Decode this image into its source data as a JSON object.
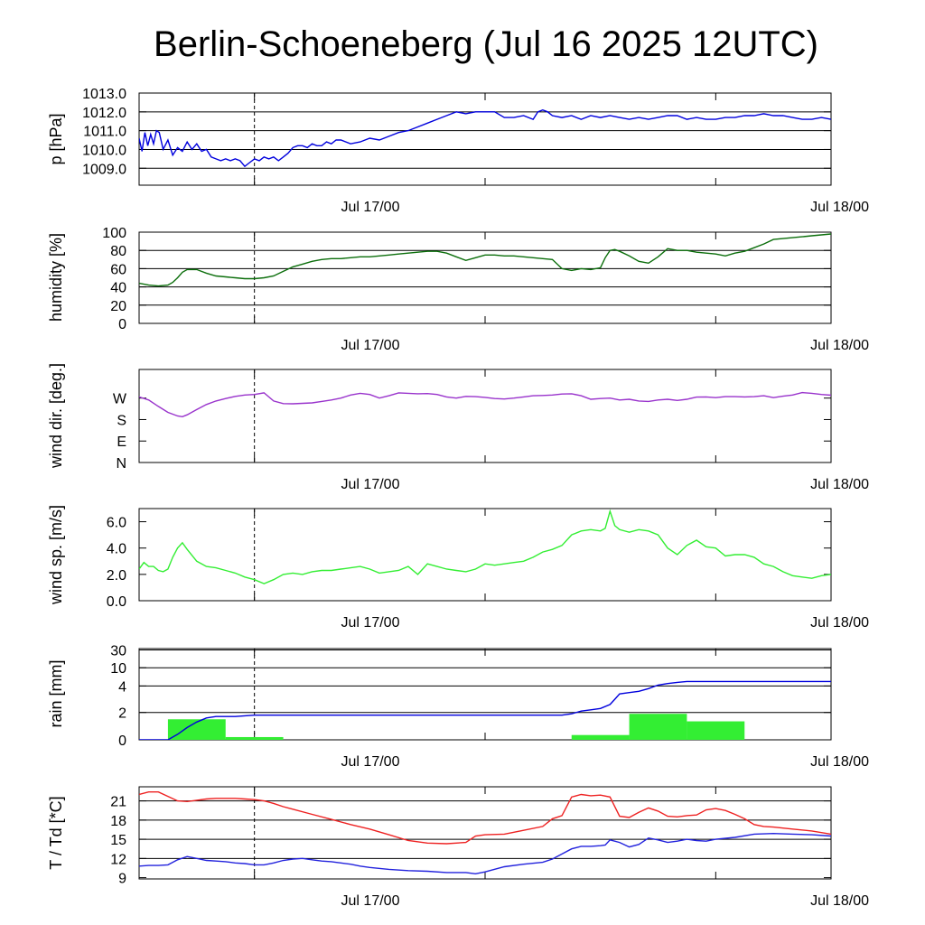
{
  "title": "Berlin-Schoeneberg (Jul 16 2025 12UTC)",
  "x_ticks": [
    "Jul 17/00",
    "Jul 18/00"
  ],
  "chart_data": [
    {
      "id": "pressure",
      "type": "line",
      "ylabel": "p [hPa]",
      "ylim": [
        1008.1,
        1013.0
      ],
      "ticks": [
        1009.0,
        1010.0,
        1011.0,
        1012.0,
        1013.0
      ],
      "tick_labels": [
        "1009.0",
        "1010.0",
        "1011.0",
        "1012.0",
        "1013.0"
      ],
      "grid_lines": [
        1009.0,
        1010.0,
        1011.0,
        1012.0,
        1013.0
      ],
      "color": "#0000dd",
      "x_hours": [
        0,
        0.3,
        0.6,
        0.9,
        1.2,
        1.5,
        1.8,
        2.1,
        2.5,
        3,
        3.5,
        4,
        4.5,
        5,
        5.5,
        6,
        6.5,
        7,
        7.5,
        8,
        8.5,
        9,
        9.5,
        10,
        10.5,
        11,
        11.5,
        12,
        12.5,
        13,
        13.5,
        14,
        14.5,
        15,
        15.5,
        16,
        16.5,
        17,
        17.5,
        18,
        18.5,
        19,
        19.5,
        20,
        20.5,
        21,
        22,
        23,
        24,
        25,
        26,
        27,
        28,
        29,
        30,
        31,
        32,
        33,
        34,
        35,
        36,
        37,
        38,
        39,
        40,
        41,
        41.5,
        42,
        42.5,
        43,
        44,
        45,
        46,
        47,
        48,
        49,
        50,
        51,
        52,
        53,
        54,
        55,
        56,
        57,
        58,
        59,
        60,
        61,
        62,
        63,
        64,
        65,
        66,
        67,
        68,
        69,
        70,
        71,
        72
      ],
      "values": [
        1010.6,
        1009.9,
        1010.9,
        1010.2,
        1010.8,
        1010.3,
        1011.0,
        1010.9,
        1010.0,
        1010.5,
        1009.7,
        1010.1,
        1009.9,
        1010.4,
        1010.0,
        1010.3,
        1009.9,
        1010.0,
        1009.6,
        1009.5,
        1009.4,
        1009.5,
        1009.4,
        1009.5,
        1009.4,
        1009.1,
        1009.3,
        1009.5,
        1009.4,
        1009.6,
        1009.5,
        1009.6,
        1009.4,
        1009.6,
        1009.8,
        1010.1,
        1010.2,
        1010.2,
        1010.1,
        1010.3,
        1010.2,
        1010.2,
        1010.4,
        1010.3,
        1010.5,
        1010.5,
        1010.3,
        1010.4,
        1010.6,
        1010.5,
        1010.7,
        1010.9,
        1011.0,
        1011.2,
        1011.4,
        1011.6,
        1011.8,
        1012.0,
        1011.9,
        1012.0,
        1012.0,
        1012.0,
        1011.7,
        1011.7,
        1011.8,
        1011.6,
        1012.0,
        1012.1,
        1012.0,
        1011.8,
        1011.7,
        1011.8,
        1011.6,
        1011.8,
        1011.7,
        1011.8,
        1011.7,
        1011.6,
        1011.7,
        1011.6,
        1011.7,
        1011.8,
        1011.8,
        1011.6,
        1011.7,
        1011.6,
        1011.6,
        1011.7,
        1011.7,
        1011.8,
        1011.8,
        1011.9,
        1011.8,
        1011.8,
        1011.7,
        1011.6,
        1011.6,
        1011.7,
        1011.6
      ]
    },
    {
      "id": "humidity",
      "type": "line",
      "ylabel": "humidity [%]",
      "ylim": [
        0,
        100
      ],
      "ticks": [
        0,
        20,
        40,
        60,
        80,
        100
      ],
      "tick_labels": [
        "0",
        "20",
        "40",
        "60",
        "80",
        "100"
      ],
      "grid_lines": [
        20,
        40,
        60,
        80,
        100
      ],
      "color": "#0b6e0b",
      "x_hours": [
        0,
        1,
        2,
        3,
        3.5,
        4,
        4.5,
        5,
        6,
        7,
        8,
        9,
        10,
        11,
        12,
        13,
        14,
        15,
        16,
        17,
        18,
        19,
        20,
        21,
        22,
        23,
        24,
        25,
        26,
        27,
        28,
        29,
        30,
        31,
        32,
        33,
        34,
        35,
        36,
        37,
        38,
        39,
        40,
        41,
        42,
        43,
        44,
        45,
        46,
        47,
        48,
        48.5,
        49,
        49.5,
        50,
        51,
        52,
        53,
        54,
        55,
        56,
        57,
        58,
        59,
        60,
        61,
        62,
        63,
        64,
        65,
        66,
        67,
        68,
        69,
        70,
        71,
        72
      ],
      "values": [
        44,
        42,
        41,
        42,
        45,
        50,
        56,
        59,
        59,
        55,
        52,
        51,
        50,
        49,
        49,
        50,
        52,
        57,
        62,
        65,
        68,
        70,
        71,
        71,
        72,
        73,
        73,
        74,
        75,
        76,
        77,
        78,
        79,
        79,
        77,
        73,
        69,
        72,
        75,
        75,
        74,
        74,
        73,
        72,
        71,
        70,
        60,
        58,
        60,
        59,
        61,
        72,
        80,
        81,
        79,
        74,
        68,
        66,
        73,
        82,
        80,
        80,
        78,
        77,
        76,
        74,
        77,
        79,
        83,
        87,
        92,
        93,
        94,
        95,
        96,
        97,
        98
      ]
    },
    {
      "id": "wind_dir",
      "type": "line",
      "ylabel": "wind dir. [deg.]",
      "ylim": [
        0,
        390
      ],
      "ticks": [
        0,
        90,
        180,
        270
      ],
      "tick_labels": [
        "N",
        "E",
        "S",
        "W"
      ],
      "grid_lines": [],
      "color": "#9933cc",
      "x_hours": [
        0,
        1,
        2,
        3,
        4,
        4.5,
        5,
        6,
        7,
        8,
        9,
        10,
        11,
        12,
        13,
        14,
        15,
        16,
        17,
        18,
        19,
        20,
        21,
        22,
        23,
        24,
        25,
        26,
        27,
        28,
        29,
        30,
        31,
        32,
        33,
        34,
        35,
        36,
        37,
        38,
        39,
        40,
        41,
        42,
        43,
        44,
        45,
        46,
        47,
        48,
        49,
        50,
        51,
        52,
        53,
        54,
        55,
        56,
        57,
        58,
        59,
        60,
        61,
        62,
        63,
        64,
        65,
        66,
        67,
        68,
        69,
        70,
        71,
        72
      ],
      "values": [
        275,
        262,
        235,
        210,
        195,
        192,
        200,
        222,
        243,
        258,
        268,
        277,
        283,
        285,
        292,
        258,
        247,
        246,
        248,
        250,
        256,
        262,
        270,
        283,
        290,
        285,
        270,
        280,
        292,
        290,
        288,
        289,
        285,
        275,
        270,
        277,
        276,
        273,
        268,
        266,
        270,
        275,
        280,
        281,
        283,
        287,
        288,
        280,
        265,
        268,
        270,
        262,
        265,
        258,
        256,
        262,
        265,
        260,
        265,
        274,
        275,
        272,
        276,
        276,
        275,
        276,
        280,
        272,
        278,
        283,
        293,
        290,
        285,
        282
      ]
    },
    {
      "id": "wind_speed",
      "type": "line",
      "ylabel": "wind sp. [m/s]",
      "ylim": [
        0,
        7
      ],
      "ticks": [
        0.0,
        2.0,
        4.0,
        6.0
      ],
      "tick_labels": [
        "0.0",
        "2.0",
        "4.0",
        "6.0"
      ],
      "grid_lines": [],
      "color": "#33ee33",
      "x_hours": [
        0,
        0.5,
        1,
        1.5,
        2,
        2.5,
        3,
        3.5,
        4,
        4.5,
        5,
        6,
        7,
        8,
        9,
        10,
        11,
        12,
        13,
        14,
        15,
        16,
        17,
        18,
        19,
        20,
        21,
        22,
        23,
        24,
        25,
        26,
        27,
        28,
        29,
        30,
        31,
        32,
        33,
        34,
        35,
        36,
        37,
        38,
        39,
        40,
        41,
        42,
        43,
        44,
        45,
        46,
        47,
        48,
        48.5,
        49,
        49.5,
        50,
        51,
        52,
        53,
        54,
        55,
        56,
        57,
        58,
        59,
        60,
        61,
        62,
        63,
        64,
        65,
        66,
        67,
        68,
        69,
        70,
        71,
        72
      ],
      "values": [
        2.4,
        2.9,
        2.6,
        2.6,
        2.3,
        2.2,
        2.4,
        3.3,
        4.0,
        4.4,
        3.9,
        3.0,
        2.6,
        2.5,
        2.3,
        2.1,
        1.8,
        1.6,
        1.3,
        1.6,
        2.0,
        2.1,
        2.0,
        2.2,
        2.3,
        2.3,
        2.4,
        2.5,
        2.6,
        2.4,
        2.1,
        2.2,
        2.3,
        2.6,
        2.0,
        2.8,
        2.6,
        2.4,
        2.3,
        2.2,
        2.4,
        2.8,
        2.7,
        2.8,
        2.9,
        3.0,
        3.3,
        3.7,
        3.9,
        4.2,
        5.0,
        5.3,
        5.4,
        5.3,
        5.5,
        6.8,
        5.7,
        5.4,
        5.2,
        5.4,
        5.3,
        5.0,
        4.0,
        3.5,
        4.2,
        4.6,
        4.1,
        4.0,
        3.4,
        3.5,
        3.5,
        3.3,
        2.8,
        2.6,
        2.2,
        1.9,
        1.8,
        1.7,
        1.9,
        2.0
      ]
    },
    {
      "id": "rain",
      "type": "bar+line",
      "ylabel": "rain [mm]",
      "ylim_display": [
        0,
        30
      ],
      "ticks": [
        0,
        2,
        4,
        10,
        30
      ],
      "tick_labels": [
        "0",
        "2",
        "4",
        "10",
        "30"
      ],
      "grid_lines": [
        2,
        4,
        10,
        30
      ],
      "bar_color": "#33ee33",
      "line_color": "#0000dd",
      "bars": [
        {
          "start_hour": 3,
          "end_hour": 9,
          "value": 1.5
        },
        {
          "start_hour": 9,
          "end_hour": 15,
          "value": 0.2
        },
        {
          "start_hour": 45,
          "end_hour": 51,
          "value": 0.35
        },
        {
          "start_hour": 51,
          "end_hour": 57,
          "value": 1.9
        },
        {
          "start_hour": 57,
          "end_hour": 63,
          "value": 1.35
        }
      ],
      "cumulative_x_hours": [
        0,
        3,
        4,
        5,
        6,
        7,
        8,
        10,
        12,
        14,
        20,
        24,
        30,
        36,
        42,
        44,
        45,
        46,
        47,
        48,
        49,
        49.5,
        50,
        51,
        52,
        53,
        54,
        55,
        56,
        57,
        58,
        60,
        64,
        72
      ],
      "cumulative_values": [
        0,
        0,
        0.4,
        0.9,
        1.3,
        1.6,
        1.7,
        1.7,
        1.8,
        1.8,
        1.8,
        1.8,
        1.8,
        1.8,
        1.8,
        1.8,
        1.9,
        2.1,
        2.2,
        2.3,
        2.6,
        3.0,
        3.4,
        3.5,
        3.6,
        3.8,
        4.3,
        4.8,
        5.2,
        5.5,
        5.5,
        5.5,
        5.5,
        5.5
      ]
    },
    {
      "id": "temperature",
      "type": "line",
      "ylabel": "T / Td [*C]",
      "ylim": [
        8.8,
        23.2
      ],
      "ticks": [
        9,
        12,
        15,
        18,
        21
      ],
      "tick_labels": [
        "9",
        "12",
        "15",
        "18",
        "21"
      ],
      "grid_lines": [
        12,
        15,
        18,
        21
      ],
      "series": [
        {
          "color": "#ee2222",
          "x_hours": [
            0,
            1,
            2,
            3,
            4,
            5,
            6,
            7,
            8,
            9,
            10,
            11,
            12,
            13,
            14,
            15,
            16,
            18,
            20,
            22,
            24,
            26,
            28,
            30,
            32,
            34,
            35,
            36,
            38,
            40,
            42,
            43,
            44,
            45,
            46,
            47,
            48,
            49,
            50,
            51,
            52,
            53,
            54,
            55,
            56,
            57,
            58,
            59,
            60,
            61,
            62,
            63,
            64,
            65,
            66,
            68,
            70,
            72
          ],
          "values": [
            22.0,
            22.4,
            22.4,
            21.7,
            21.0,
            20.9,
            21.1,
            21.3,
            21.4,
            21.4,
            21.4,
            21.3,
            21.2,
            21.0,
            20.6,
            20.1,
            19.7,
            18.9,
            18.1,
            17.3,
            16.6,
            15.7,
            14.8,
            14.4,
            14.3,
            14.5,
            15.5,
            15.7,
            15.8,
            16.4,
            17.0,
            18.2,
            18.7,
            21.6,
            22.0,
            21.8,
            21.9,
            21.6,
            18.6,
            18.4,
            19.2,
            19.9,
            19.4,
            18.6,
            18.5,
            18.7,
            18.8,
            19.6,
            19.8,
            19.5,
            18.9,
            18.2,
            17.3,
            17.0,
            16.9,
            16.6,
            16.3,
            15.8
          ]
        },
        {
          "color": "#2222dd",
          "x_hours": [
            0,
            1,
            2,
            3,
            4,
            5,
            6,
            7,
            8,
            9,
            10,
            11,
            12,
            13,
            14,
            15,
            16,
            17,
            18,
            19,
            20,
            21,
            22,
            23,
            24,
            26,
            28,
            30,
            32,
            34,
            35,
            36,
            38,
            40,
            42,
            43,
            44,
            45,
            46,
            47,
            48,
            48.5,
            49,
            50,
            51,
            52,
            53,
            54,
            55,
            56,
            57,
            58,
            59,
            60,
            62,
            64,
            66,
            68,
            70,
            72
          ],
          "values": [
            10.8,
            10.9,
            10.9,
            11.0,
            11.8,
            12.3,
            12.0,
            11.7,
            11.6,
            11.5,
            11.3,
            11.2,
            11.0,
            11.0,
            11.3,
            11.7,
            11.9,
            12.0,
            11.8,
            11.6,
            11.5,
            11.3,
            11.1,
            10.8,
            10.6,
            10.3,
            10.1,
            10.0,
            9.8,
            9.8,
            9.6,
            9.9,
            10.7,
            11.1,
            11.4,
            11.9,
            12.7,
            13.5,
            13.9,
            13.9,
            14.0,
            14.1,
            14.9,
            14.5,
            13.8,
            14.2,
            15.2,
            14.9,
            14.5,
            14.7,
            15.0,
            14.8,
            14.7,
            15.0,
            15.3,
            15.8,
            15.9,
            15.8,
            15.7,
            15.5
          ]
        }
      ]
    }
  ]
}
